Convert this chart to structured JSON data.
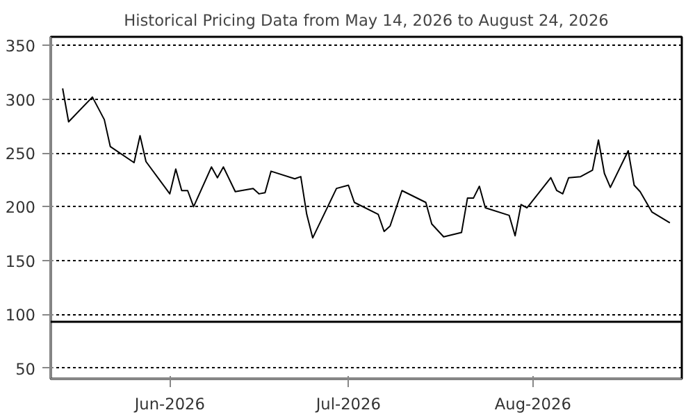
{
  "chart_data": {
    "type": "line",
    "title": "Historical Pricing Data from May 14, 2026 to August 24, 2026",
    "x": [
      "2026-05-14",
      "2026-05-15",
      "2026-05-19",
      "2026-05-21",
      "2026-05-22",
      "2026-05-26",
      "2026-05-27",
      "2026-05-28",
      "2026-06-01",
      "2026-06-02",
      "2026-06-03",
      "2026-06-04",
      "2026-06-05",
      "2026-06-08",
      "2026-06-09",
      "2026-06-10",
      "2026-06-12",
      "2026-06-15",
      "2026-06-16",
      "2026-06-17",
      "2026-06-18",
      "2026-06-22",
      "2026-06-23",
      "2026-06-24",
      "2026-06-25",
      "2026-06-29",
      "2026-07-01",
      "2026-07-02",
      "2026-07-06",
      "2026-07-07",
      "2026-07-08",
      "2026-07-10",
      "2026-07-14",
      "2026-07-15",
      "2026-07-17",
      "2026-07-20",
      "2026-07-21",
      "2026-07-22",
      "2026-07-23",
      "2026-07-24",
      "2026-07-28",
      "2026-07-29",
      "2026-07-30",
      "2026-07-31",
      "2026-08-04",
      "2026-08-05",
      "2026-08-06",
      "2026-08-07",
      "2026-08-09",
      "2026-08-11",
      "2026-08-12",
      "2026-08-13",
      "2026-08-14",
      "2026-08-17",
      "2026-08-18",
      "2026-08-19",
      "2026-08-21",
      "2026-08-24"
    ],
    "series": [
      {
        "color": "#000000",
        "values": [
          310,
          279,
          302,
          281,
          256,
          241,
          266,
          242,
          212,
          235,
          215,
          215,
          200,
          237,
          227,
          237,
          214,
          217,
          212,
          213,
          233,
          226,
          228,
          193,
          171,
          217,
          220,
          204,
          193,
          177,
          182,
          215,
          204,
          184,
          172,
          176,
          208,
          208,
          219,
          199,
          192,
          173,
          202,
          199,
          227,
          215,
          212,
          227,
          228,
          234,
          262,
          231,
          218,
          252,
          220,
          214,
          195,
          185
        ]
      }
    ],
    "xlim": [
      "2026-05-12",
      "2026-08-26"
    ],
    "xticks": [
      {
        "value": "2026-06-01",
        "label": "Jun-2026"
      },
      {
        "value": "2026-07-01",
        "label": "Jul-2026"
      },
      {
        "value": "2026-08-01",
        "label": "Aug-2026"
      }
    ],
    "ylim": [
      40,
      358
    ],
    "yticks": [
      50,
      100,
      150,
      200,
      250,
      300,
      350
    ],
    "grid": "y",
    "ref_lines": [
      {
        "axis": "y",
        "value": 93,
        "color": "#000000",
        "line_style": "solid"
      }
    ]
  }
}
